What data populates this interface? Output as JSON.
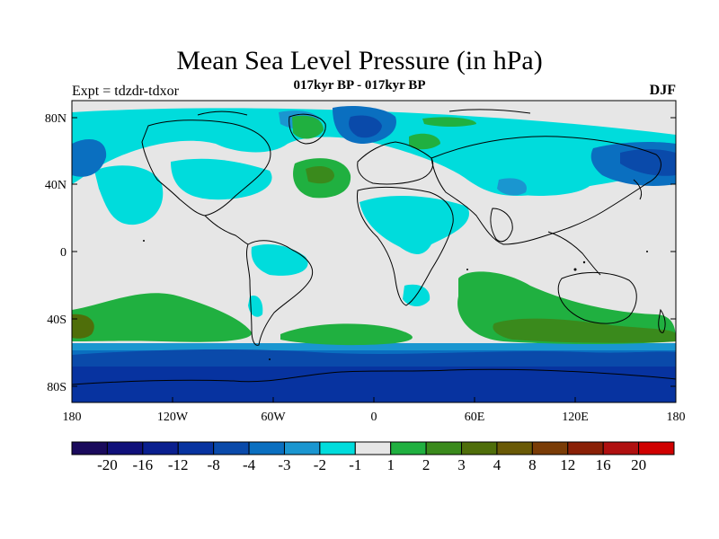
{
  "title": "Mean Sea Level Pressure (in hPa)",
  "subtitle": "017kyr BP - 017kyr BP",
  "left_label": "Expt = tdzdr-tdxor",
  "right_label": "DJF",
  "lat_ticks": [
    "80N",
    "40N",
    "0",
    "40S",
    "80S"
  ],
  "lon_ticks": [
    "180",
    "120W",
    "60W",
    "0",
    "60E",
    "120E",
    "180"
  ],
  "colorbar": {
    "colors": [
      "#1a0a5c",
      "#10107a",
      "#0a1f8f",
      "#0733a0",
      "#0a4aaa",
      "#0a6fc0",
      "#1a96d0",
      "#00dcdc",
      "#e6e6e6",
      "#20b040",
      "#3a8a1c",
      "#4f6e0a",
      "#6a5a06",
      "#7a3c06",
      "#8a2006",
      "#b01010",
      "#d00000"
    ],
    "labels": [
      "-20",
      "-16",
      "-12",
      "-8",
      "-4",
      "-3",
      "-2",
      "-1",
      "1",
      "2",
      "3",
      "4",
      "8",
      "12",
      "16",
      "20"
    ]
  },
  "palette": {
    "neutral": "#e6e6e6",
    "cyan": "#00dcdc",
    "light_blue": "#1a96d0",
    "mid_blue": "#0a6fc0",
    "blue": "#0a4aaa",
    "dark_blue": "#0733a0",
    "navy": "#0a1f8f",
    "green": "#20b040",
    "dark_green": "#3a8a1c",
    "olive": "#4f6e0a"
  }
}
